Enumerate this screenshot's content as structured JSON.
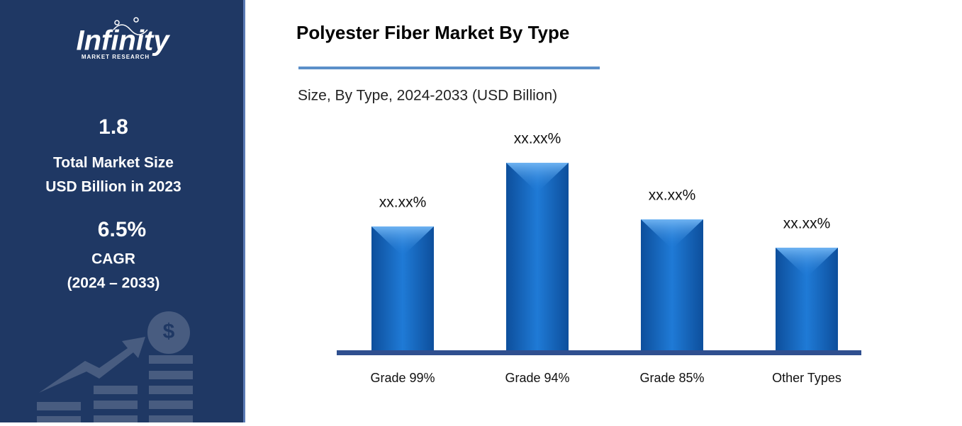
{
  "sidebar": {
    "logo": "Infinity",
    "logo_tagline": "MARKET RESEARCH",
    "market_size": "1.8",
    "market_size_label_1": "Total Market Size",
    "market_size_label_2": "USD Billion in 2023",
    "cagr": "6.5%",
    "cagr_label": "CAGR",
    "cagr_period": "(2024 – 2033)"
  },
  "chart_data": {
    "type": "bar",
    "title": "Polyester Fiber Market By Type",
    "subtitle": "Size, By Type, 2024-2033 (USD Billion)",
    "categories": [
      "Grade 99%",
      "Grade 94%",
      "Grade 85%",
      "Other Types"
    ],
    "values": [
      175,
      265,
      185,
      145
    ],
    "value_labels": [
      "xx.xx%",
      "xx.xx%",
      "xx.xx%",
      "xx.xx%"
    ],
    "color": "#1a6cc4"
  }
}
